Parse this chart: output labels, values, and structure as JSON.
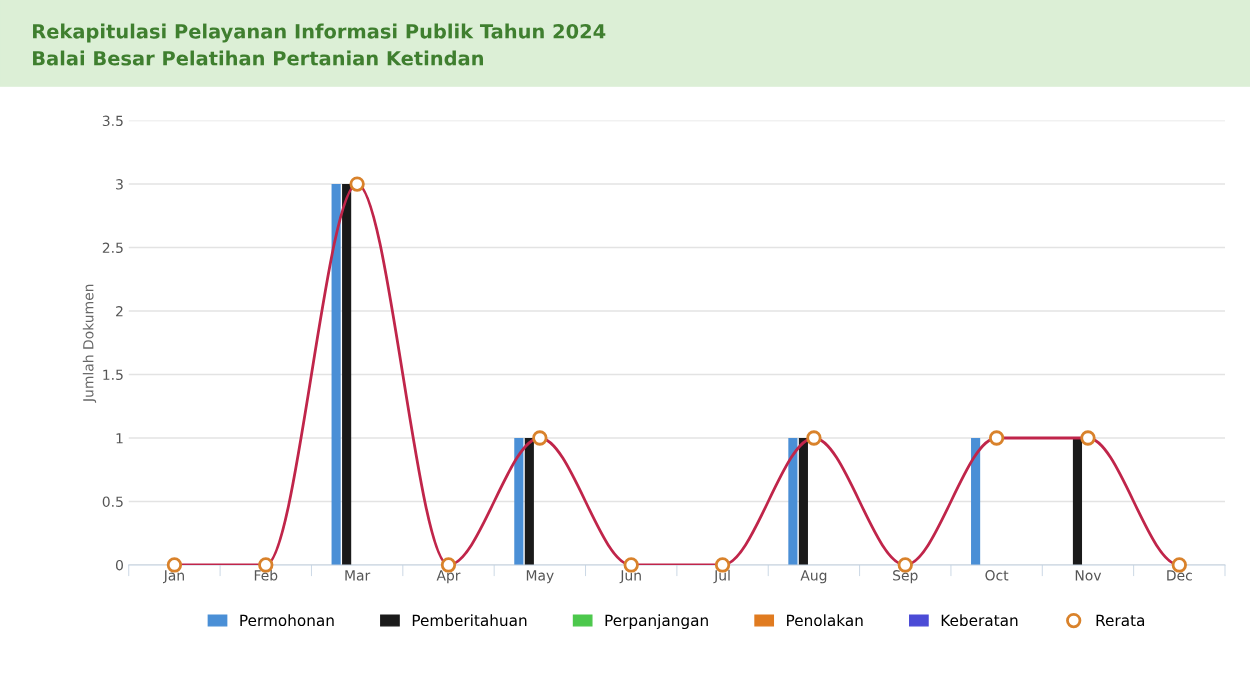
{
  "chart_data": {
    "type": "bar",
    "title": "Rekapitulasi Pelayanan Informasi Publik Tahun 2024",
    "subtitle": "Balai Besar Pelatihan Pertanian Ketindan",
    "ylabel": "Jumlah Dokumen",
    "categories": [
      "Jan",
      "Feb",
      "Mar",
      "Apr",
      "May",
      "Jun",
      "Jul",
      "Aug",
      "Sep",
      "Oct",
      "Nov",
      "Dec"
    ],
    "series": [
      {
        "name": "Permohonan",
        "color": "#4a8fd6",
        "values": [
          0,
          0,
          3,
          0,
          1,
          0,
          0,
          1,
          0,
          1,
          0,
          0
        ]
      },
      {
        "name": "Pemberitahuan",
        "color": "#1a1a1a",
        "values": [
          0,
          0,
          3,
          0,
          1,
          0,
          0,
          1,
          0,
          0,
          1,
          0
        ]
      },
      {
        "name": "Perpanjangan",
        "color": "#4cc84c",
        "values": [
          0,
          0,
          0,
          0,
          0,
          0,
          0,
          0,
          0,
          0,
          0,
          0
        ]
      },
      {
        "name": "Penolakan",
        "color": "#e07b20",
        "values": [
          0,
          0,
          0,
          0,
          0,
          0,
          0,
          0,
          0,
          0,
          0,
          0
        ]
      },
      {
        "name": "Keberatan",
        "color": "#4b4bd6",
        "values": [
          0,
          0,
          0,
          0,
          0,
          0,
          0,
          0,
          0,
          0,
          0,
          0
        ]
      },
      {
        "name": "Rerata",
        "type": "line",
        "color": "#c0254a",
        "marker": "circle",
        "values": [
          0,
          0,
          3,
          0,
          1,
          0,
          0,
          1,
          0,
          1,
          1,
          0
        ]
      }
    ],
    "ylim": [
      0,
      3.5
    ],
    "yticks": [
      0,
      0.5,
      1,
      1.5,
      2,
      2.5,
      3,
      3.5
    ],
    "grid": "y",
    "legend": "bottom"
  }
}
